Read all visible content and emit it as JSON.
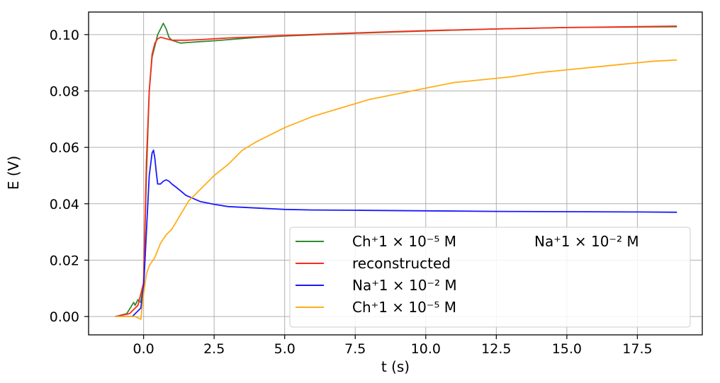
{
  "chart_data": {
    "type": "line",
    "xlabel": "t (s)",
    "ylabel": "E (V)",
    "xlim": [
      -1.95,
      19.8
    ],
    "ylim": [
      -0.0065,
      0.108
    ],
    "x_ticks": [
      "0.0",
      "2.5",
      "5.0",
      "7.5",
      "10.0",
      "12.5",
      "15.0",
      "17.5"
    ],
    "x_tick_values": [
      0,
      2.5,
      5,
      7.5,
      10,
      12.5,
      15,
      17.5
    ],
    "y_ticks": [
      "0.00",
      "0.02",
      "0.04",
      "0.06",
      "0.08",
      "0.10"
    ],
    "y_tick_values": [
      0,
      0.02,
      0.04,
      0.06,
      0.08,
      0.1
    ],
    "grid": true,
    "legend": {
      "placement": "lower-right",
      "title_right": "Na⁺1 × 10⁻² M",
      "entries": [
        {
          "label": "Ch⁺1 × 10⁻⁵ M",
          "color": "#2e8b2e"
        },
        {
          "label": "reconstructed",
          "color": "#ff2a1a"
        },
        {
          "label": "Na⁺1 × 10⁻² M",
          "color": "#1a1aff"
        },
        {
          "label": "Ch⁺1 × 10⁻⁵ M",
          "color": "#ffae1a"
        }
      ]
    },
    "series": [
      {
        "color": "#2e8b2e",
        "x": [
          -1.0,
          -0.6,
          -0.35,
          -0.3,
          -0.2,
          -0.1,
          0.0,
          0.1,
          0.2,
          0.3,
          0.4,
          0.5,
          0.6,
          0.7,
          0.8,
          0.9,
          1.0,
          1.3,
          1.6,
          2.0,
          2.5,
          3.0,
          4.0,
          5.0,
          7.5,
          10.0,
          12.5,
          15.0,
          17.5,
          18.9
        ],
        "y": [
          0.0,
          0.001,
          0.005,
          0.004,
          0.006,
          0.005,
          0.012,
          0.05,
          0.08,
          0.092,
          0.096,
          0.1,
          0.102,
          0.104,
          0.102,
          0.099,
          0.098,
          0.097,
          0.0972,
          0.0975,
          0.0978,
          0.0982,
          0.099,
          0.0995,
          0.1005,
          0.1013,
          0.102,
          0.1025,
          0.1027,
          0.1028
        ]
      },
      {
        "color": "#ff2a1a",
        "x": [
          -1.0,
          -0.5,
          -0.2,
          0.0,
          0.1,
          0.2,
          0.3,
          0.4,
          0.5,
          0.6,
          0.7,
          0.8,
          1.0,
          1.5,
          2.0,
          2.5,
          3.0,
          4.0,
          5.0,
          7.5,
          10.0,
          12.5,
          15.0,
          17.5,
          18.9
        ],
        "y": [
          0.0,
          0.001,
          0.004,
          0.012,
          0.055,
          0.08,
          0.093,
          0.097,
          0.0985,
          0.099,
          0.0988,
          0.0985,
          0.098,
          0.098,
          0.0982,
          0.0985,
          0.0988,
          0.0992,
          0.0997,
          0.1006,
          0.1014,
          0.102,
          0.1025,
          0.1028,
          0.103
        ]
      },
      {
        "color": "#1a1aff",
        "x": [
          -1.0,
          -0.4,
          -0.2,
          -0.1,
          0.0,
          0.1,
          0.2,
          0.3,
          0.35,
          0.4,
          0.45,
          0.5,
          0.6,
          0.7,
          0.8,
          0.9,
          1.0,
          1.2,
          1.5,
          2.0,
          2.5,
          3.0,
          4.0,
          5.0,
          6.0,
          7.5,
          10.0,
          12.5,
          15.0,
          17.5,
          18.9
        ],
        "y": [
          0.0,
          0.0,
          0.002,
          0.003,
          0.01,
          0.03,
          0.05,
          0.058,
          0.059,
          0.056,
          0.051,
          0.047,
          0.047,
          0.048,
          0.0485,
          0.048,
          0.047,
          0.0455,
          0.043,
          0.0408,
          0.0398,
          0.039,
          0.0385,
          0.038,
          0.0378,
          0.0377,
          0.0375,
          0.0373,
          0.0372,
          0.0371,
          0.037
        ]
      },
      {
        "color": "#ffae1a",
        "x": [
          -1.0,
          -0.3,
          -0.1,
          0.0,
          0.1,
          0.2,
          0.4,
          0.6,
          0.8,
          1.0,
          1.3,
          1.6,
          2.0,
          2.5,
          3.0,
          3.5,
          4.0,
          5.0,
          6.0,
          7.0,
          8.0,
          9.0,
          10.0,
          11.0,
          12.0,
          13.0,
          14.0,
          15.0,
          16.0,
          17.0,
          18.0,
          18.9
        ],
        "y": [
          0.0,
          0.0,
          -0.001,
          0.008,
          0.015,
          0.018,
          0.021,
          0.026,
          0.029,
          0.031,
          0.036,
          0.041,
          0.045,
          0.05,
          0.054,
          0.059,
          0.062,
          0.067,
          0.071,
          0.074,
          0.077,
          0.079,
          0.081,
          0.083,
          0.084,
          0.085,
          0.0865,
          0.0875,
          0.0885,
          0.0895,
          0.0905,
          0.091
        ]
      }
    ]
  }
}
